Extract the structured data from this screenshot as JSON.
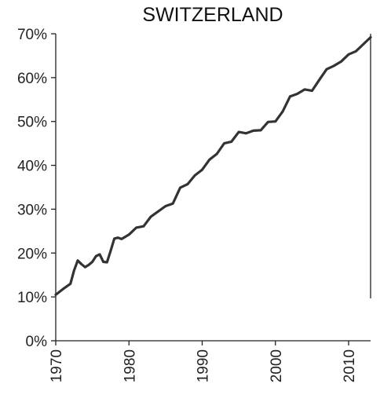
{
  "chart_data": {
    "type": "line",
    "title": "SWITZERLAND",
    "xlabel": "",
    "ylabel": "",
    "xlim": [
      1970,
      2013
    ],
    "ylim": [
      0,
      70
    ],
    "x_ticks": [
      1970,
      1980,
      1990,
      2000,
      2010
    ],
    "x_tick_labels": [
      "1970",
      "1980",
      "1990",
      "2000",
      "2010"
    ],
    "y_ticks": [
      0,
      10,
      20,
      30,
      40,
      50,
      60,
      70
    ],
    "y_tick_labels": [
      "0%",
      "10%",
      "20%",
      "30%",
      "40%",
      "50%",
      "60%",
      "70%"
    ],
    "grid": false,
    "series": [
      {
        "color": "#333333",
        "x": [
          1970.0,
          1971.0,
          1972.0,
          1972.5,
          1973.0,
          1973.5,
          1974.0,
          1974.5,
          1975.0,
          1975.5,
          1976.0,
          1976.5,
          1977.0,
          1977.5,
          1978.0,
          1978.5,
          1979.0,
          1980.0,
          1981.0,
          1982.0,
          1983.0,
          1984.0,
          1985.0,
          1986.0,
          1987.0,
          1988.0,
          1989.0,
          1990.0,
          1991.0,
          1992.0,
          1993.0,
          1994.0,
          1995.0,
          1996.0,
          1997.0,
          1998.0,
          1999.0,
          2000.0,
          2001.0,
          2002.0,
          2003.0,
          2004.0,
          2005.0,
          2006.0,
          2007.0,
          2008.0,
          2009.0,
          2010.0,
          2011.0,
          2012.0,
          2013.0
        ],
        "values": [
          10.5,
          11.8,
          13.0,
          16.0,
          18.3,
          17.5,
          16.8,
          17.3,
          18.0,
          19.3,
          19.7,
          18.0,
          17.9,
          20.5,
          23.3,
          23.5,
          23.2,
          24.2,
          25.8,
          26.1,
          28.3,
          29.5,
          30.7,
          31.3,
          34.9,
          35.7,
          37.7,
          39.0,
          41.3,
          42.6,
          45.0,
          45.4,
          47.6,
          47.3,
          47.9,
          48.0,
          49.9,
          50.0,
          52.3,
          55.7,
          56.3,
          57.3,
          57.0,
          59.5,
          61.9,
          62.7,
          63.7,
          65.3,
          66.0,
          67.6,
          69.2
        ]
      }
    ]
  }
}
